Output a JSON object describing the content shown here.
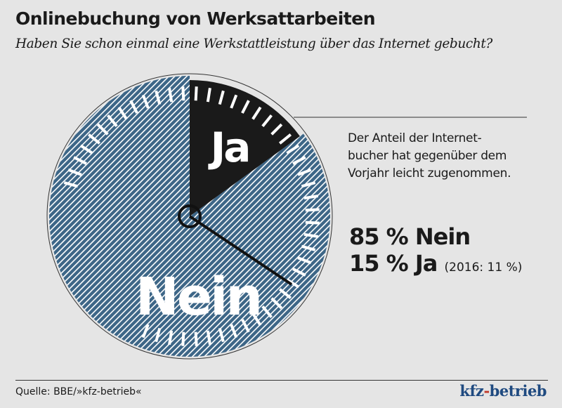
{
  "title": "Onlinebuchung von Werksattarbeiten",
  "subtitle": "Haben Sie schon einmal eine Werkstattleistung über das Internet gebucht?",
  "note": "Der Anteil der Internet-\nbucher hat gegenüber dem\nVorjahr leicht zugenommen.",
  "result_nein": "85 % Nein",
  "result_ja": "15 % Ja",
  "result_ja_prev": "(2016: 11 %)",
  "source": "Quelle: BBE/»kfz-betrieb«",
  "logo": {
    "part1": "kfz",
    "dash": "-",
    "part2": "betrieb"
  },
  "colors": {
    "nein": "#3d6687",
    "ja": "#1a1a1a",
    "background": "#e5e5e5"
  },
  "chart_data": {
    "type": "pie",
    "style": "gauge",
    "categories": [
      "Ja",
      "Nein"
    ],
    "values": [
      15,
      85
    ],
    "labels": [
      "Ja",
      "Nein"
    ]
  }
}
